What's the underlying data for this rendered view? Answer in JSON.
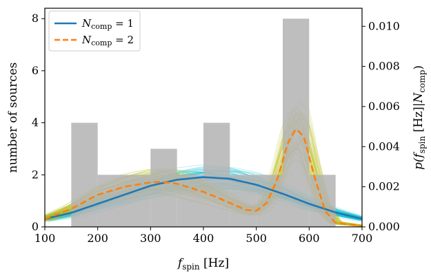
{
  "chart_data": {
    "type": "bar",
    "xlabel": "f_spin [Hz]",
    "xlabel_parts": {
      "base": "f",
      "sub": "spin",
      "unit": " [Hz]"
    },
    "ylabel": "number of sources",
    "ylabel_right": "p(f_spin [Hz]|N_comp)",
    "ylabel_right_parts": {
      "open": "p(",
      "base": "f",
      "sub": "spin",
      "mid": " [Hz]|",
      "base2": "N",
      "sub2": "comp",
      "close": ")"
    },
    "xlim": [
      100,
      700
    ],
    "ylim": [
      0,
      8.4
    ],
    "ylim_right": [
      0,
      0.0109
    ],
    "x_ticks": [
      "100",
      "200",
      "300",
      "400",
      "500",
      "600",
      "700"
    ],
    "y_ticks": [
      "0",
      "2",
      "4",
      "6",
      "8"
    ],
    "y_ticks_right": [
      "0.000",
      "0.002",
      "0.004",
      "0.006",
      "0.008",
      "0.010"
    ],
    "histogram": {
      "bin_edges": [
        150,
        200,
        250,
        300,
        350,
        400,
        450,
        500,
        550,
        600,
        650
      ],
      "counts": [
        4,
        2,
        2,
        3,
        2,
        4,
        2,
        2,
        8,
        2
      ],
      "color": "#b3b3b3"
    },
    "series": [
      {
        "name": "N_comp = 1",
        "legend_parts": {
          "base": "N",
          "sub": "comp",
          "rest": " = 1"
        },
        "color": "#1f77b4",
        "dash": "solid",
        "band_color": "#17becf",
        "x": [
          100,
          150,
          200,
          250,
          300,
          350,
          400,
          450,
          500,
          550,
          600,
          650,
          700
        ],
        "y": [
          0.0004,
          0.0007,
          0.00115,
          0.0016,
          0.00205,
          0.00235,
          0.00248,
          0.0024,
          0.0021,
          0.00165,
          0.00115,
          0.00072,
          0.0004
        ]
      },
      {
        "name": "N_comp = 2",
        "legend_parts": {
          "base": "N",
          "sub": "comp",
          "rest": " = 2"
        },
        "color": "#ff7f0e",
        "dash": "dashed",
        "band_color": "#bcbd22",
        "x": [
          100,
          150,
          200,
          250,
          300,
          320,
          350,
          400,
          450,
          480,
          500,
          520,
          540,
          560,
          575,
          590,
          610,
          630,
          650,
          700
        ],
        "y": [
          0.0004,
          0.0009,
          0.0016,
          0.002,
          0.00222,
          0.00225,
          0.00215,
          0.00175,
          0.0012,
          0.00085,
          0.0008,
          0.0012,
          0.0024,
          0.0042,
          0.0049,
          0.0045,
          0.0025,
          0.0008,
          0.0002,
          5e-05
        ]
      }
    ],
    "legend_position": "top-left",
    "grid": false
  }
}
